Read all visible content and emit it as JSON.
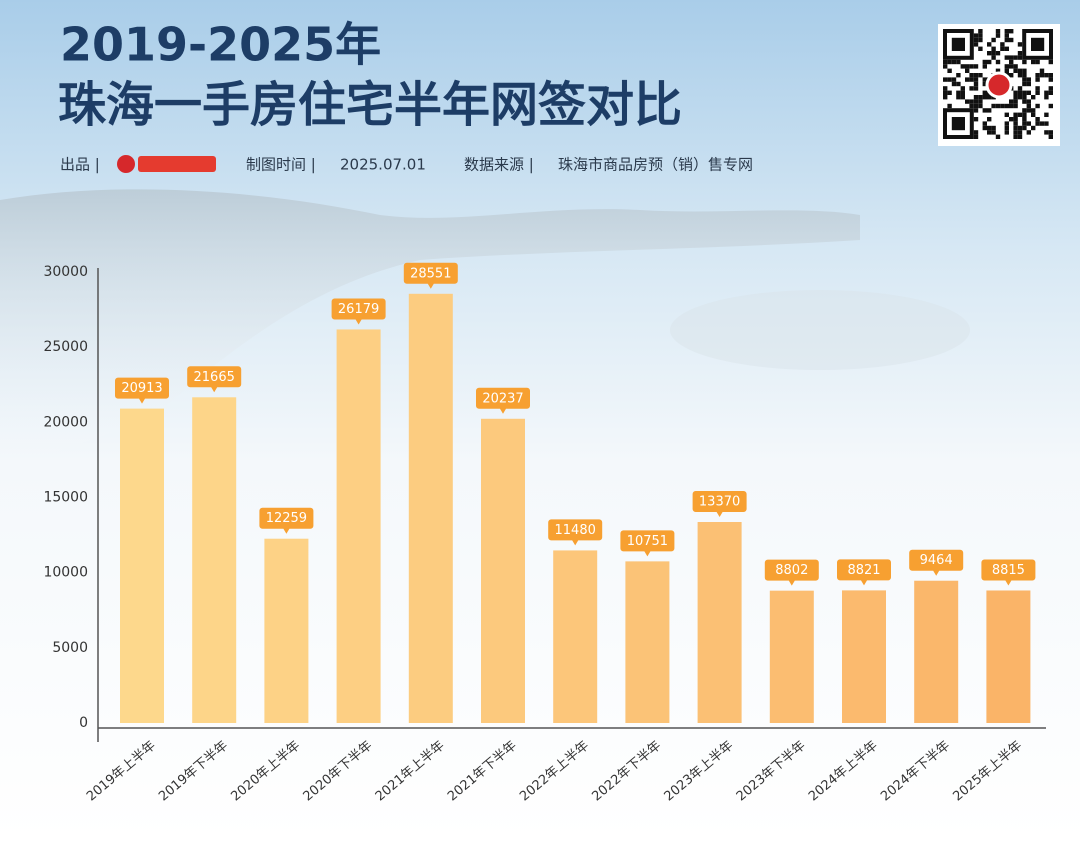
{
  "title_line1": "2019-2025年",
  "title_line2": "珠海一手房住宅半年网签对比",
  "credits": {
    "producer_label": "出品 |",
    "date_label": "制图时间 |",
    "date": "2025.07.01",
    "source_label": "数据来源 |",
    "source": "珠海市商品房预（销）售专网"
  },
  "chart_data": {
    "type": "bar",
    "categories": [
      "2019年上半年",
      "2019年下半年",
      "2020年上半年",
      "2020年下半年",
      "2021年上半年",
      "2021年下半年",
      "2022年上半年",
      "2022年下半年",
      "2023年上半年",
      "2023年下半年",
      "2024年上半年",
      "2024年下半年",
      "2025年上半年"
    ],
    "values": [
      20913,
      21665,
      12259,
      26179,
      28551,
      20237,
      11480,
      10751,
      13370,
      8802,
      8821,
      9464,
      8815
    ],
    "colors": [
      "#fdd88c",
      "#fdd589",
      "#fdd286",
      "#fdcf83",
      "#fccc80",
      "#fcc97d",
      "#fcc67a",
      "#fbc377",
      "#fbc074",
      "#fbbd71",
      "#fbba6e",
      "#fab76b",
      "#fab468"
    ],
    "label_color": "#f7a031",
    "ylim": [
      0,
      30000
    ],
    "yticks": [
      0,
      5000,
      10000,
      15000,
      20000,
      25000,
      30000
    ],
    "grid": false
  }
}
